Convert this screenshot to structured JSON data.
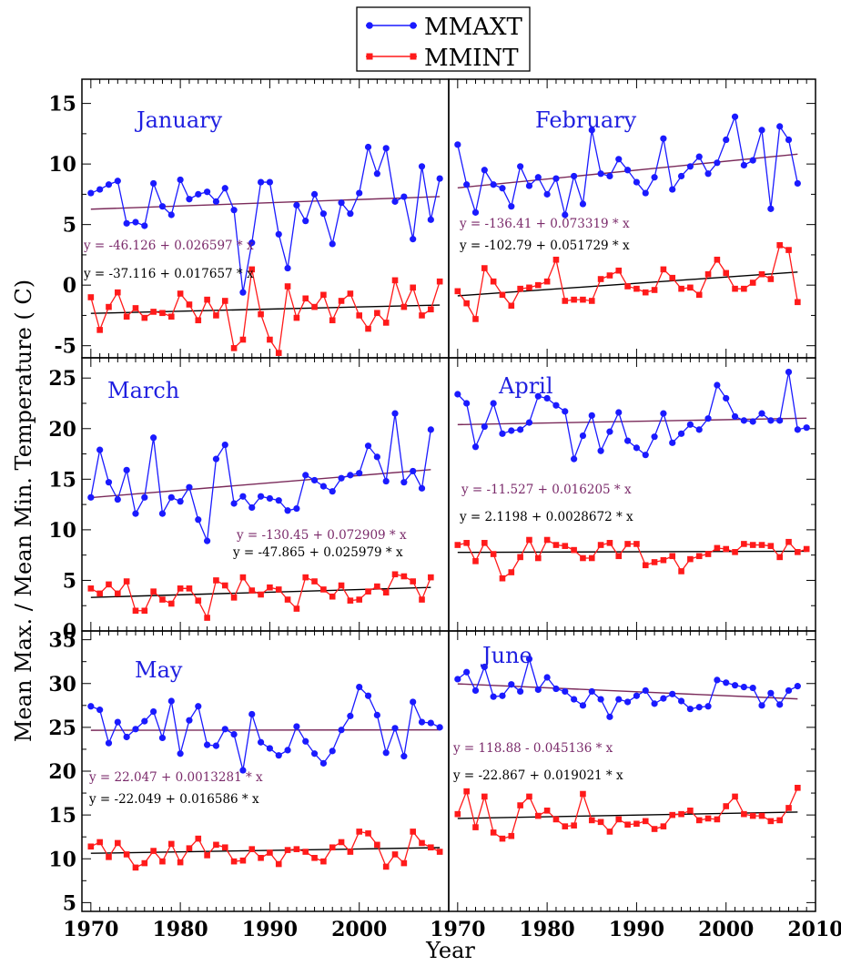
{
  "chart_data": {
    "type": "line",
    "xlabel": "Year",
    "ylabel": "Mean Max. / Mean Min. Temperature ( C)",
    "x_ticks": [
      "1970",
      "1980",
      "1990",
      "2000",
      "2010"
    ],
    "xlim": [
      1969,
      2010
    ],
    "legend": [
      {
        "name": "MMAXT",
        "color": "#1a1aff",
        "marker": "circle"
      },
      {
        "name": "MMINT",
        "color": "#ff1a1a",
        "marker": "square"
      }
    ],
    "colors": {
      "max": "#1a1aff",
      "min": "#ff1a1a",
      "trend_max": "#7a2a5a",
      "trend_min": "#000000",
      "eq_max": "#7a2a6a",
      "eq_min": "#000000"
    },
    "rows": [
      {
        "ylim": [
          -6,
          17
        ],
        "yticks": [
          "-5",
          "0",
          "5",
          "10",
          "15"
        ]
      },
      {
        "ylim": [
          0,
          27
        ],
        "yticks": [
          "0",
          "5",
          "10",
          "15",
          "20",
          "25"
        ]
      },
      {
        "ylim": [
          4,
          36
        ],
        "yticks": [
          "5",
          "10",
          "15",
          "20",
          "25",
          "30",
          "35"
        ]
      }
    ],
    "panels": [
      {
        "title": "January",
        "row": 0,
        "col": 0,
        "years": [
          1970,
          1971,
          1972,
          1973,
          1974,
          1975,
          1976,
          1977,
          1978,
          1979,
          1980,
          1981,
          1982,
          1983,
          1984,
          1985,
          1986,
          1987,
          1988,
          1989,
          1990,
          1991,
          1992,
          1993,
          1994,
          1995,
          1996,
          1997,
          1998,
          1999,
          2000,
          2001,
          2002,
          2003,
          2004,
          2005,
          2006,
          2007,
          2008,
          2009
        ],
        "mmaxt": [
          7.6,
          7.9,
          8.3,
          8.6,
          5.1,
          5.2,
          4.9,
          8.4,
          6.5,
          5.8,
          8.7,
          7.1,
          7.5,
          7.7,
          6.9,
          8.0,
          6.2,
          -0.6,
          3.5,
          8.5,
          8.5,
          4.2,
          1.4,
          6.6,
          5.3,
          7.5,
          5.9,
          3.4,
          6.8,
          5.9,
          7.6,
          11.4,
          9.2,
          11.3,
          6.9,
          7.3,
          3.8,
          9.8,
          5.4,
          8.8
        ],
        "mmint": [
          -1.0,
          -3.7,
          -1.8,
          -0.6,
          -2.6,
          -1.9,
          -2.7,
          -2.2,
          -2.3,
          -2.6,
          -0.7,
          -1.6,
          -2.9,
          -1.2,
          -2.5,
          -1.3,
          -5.2,
          -4.5,
          1.3,
          -2.4,
          -4.5,
          -5.6,
          -0.1,
          -2.7,
          -1.1,
          -1.8,
          -0.8,
          -2.9,
          -1.3,
          -0.7,
          -2.5,
          -3.6,
          -2.3,
          -3.1,
          0.4,
          -1.8,
          -0.2,
          -2.5,
          -2.0,
          0.3
        ],
        "trend_max": {
          "intercept": -46.126,
          "slope": 0.026597
        },
        "trend_min": {
          "intercept": -37.116,
          "slope": 0.017657
        },
        "eq_max": "y = -46.126 + 0.026597 * x",
        "eq_min": "y = -37.116 + 0.017657 * x"
      },
      {
        "title": "February",
        "row": 0,
        "col": 1,
        "years": [
          1970,
          1971,
          1972,
          1973,
          1974,
          1975,
          1976,
          1977,
          1978,
          1979,
          1980,
          1981,
          1982,
          1983,
          1984,
          1985,
          1986,
          1987,
          1988,
          1989,
          1990,
          1991,
          1992,
          1993,
          1994,
          1995,
          1996,
          1997,
          1998,
          1999,
          2000,
          2001,
          2002,
          2003,
          2004,
          2005,
          2006,
          2007,
          2008
        ],
        "mmaxt": [
          11.6,
          8.3,
          6.0,
          9.5,
          8.3,
          8.0,
          6.5,
          9.8,
          8.2,
          8.9,
          7.5,
          8.8,
          5.8,
          9.0,
          6.7,
          12.8,
          9.2,
          9.0,
          10.4,
          9.5,
          8.5,
          7.6,
          8.9,
          12.1,
          7.9,
          9.0,
          9.8,
          10.6,
          9.2,
          10.1,
          12.0,
          13.9,
          9.9,
          10.3,
          12.8,
          6.3,
          13.1,
          12.0,
          8.4
        ],
        "mmint": [
          -0.5,
          -1.5,
          -2.8,
          1.4,
          0.3,
          -0.8,
          -1.7,
          -0.3,
          -0.2,
          0.0,
          0.3,
          2.1,
          -1.3,
          -1.2,
          -1.2,
          -1.3,
          0.5,
          0.8,
          1.2,
          -0.1,
          -0.3,
          -0.6,
          -0.4,
          1.3,
          0.6,
          -0.3,
          -0.2,
          -0.8,
          0.9,
          2.1,
          1.0,
          -0.3,
          -0.3,
          0.2,
          0.9,
          0.5,
          3.3,
          2.9,
          -1.4
        ],
        "trend_max": {
          "intercept": -136.41,
          "slope": 0.073319
        },
        "trend_min": {
          "intercept": -102.79,
          "slope": 0.051729
        },
        "eq_max": "y = -136.41 + 0.073319 * x",
        "eq_min": "y = -102.79 + 0.051729 * x"
      },
      {
        "title": "March",
        "row": 1,
        "col": 0,
        "years": [
          1970,
          1971,
          1972,
          1973,
          1974,
          1975,
          1976,
          1977,
          1978,
          1979,
          1980,
          1981,
          1982,
          1983,
          1984,
          1985,
          1986,
          1987,
          1988,
          1989,
          1990,
          1991,
          1992,
          1993,
          1994,
          1995,
          1996,
          1997,
          1998,
          1999,
          2000,
          2001,
          2002,
          2003,
          2004,
          2005,
          2006,
          2007,
          2008
        ],
        "mmaxt": [
          13.2,
          17.9,
          14.7,
          13.0,
          15.9,
          11.6,
          13.2,
          19.1,
          11.6,
          13.2,
          12.8,
          14.2,
          11.0,
          8.9,
          17.0,
          18.4,
          12.6,
          13.3,
          12.2,
          13.3,
          13.1,
          12.9,
          11.9,
          12.1,
          15.4,
          14.9,
          14.3,
          13.8,
          15.1,
          15.4,
          15.6,
          18.3,
          17.2,
          14.8,
          21.5,
          14.7,
          15.8,
          14.1,
          19.9
        ],
        "mmint": [
          4.2,
          3.7,
          4.6,
          3.7,
          4.9,
          2.0,
          2.0,
          3.9,
          3.1,
          2.7,
          4.2,
          4.2,
          3.0,
          1.3,
          5.0,
          4.5,
          3.3,
          5.3,
          4.0,
          3.6,
          4.3,
          4.1,
          3.1,
          2.2,
          5.3,
          4.9,
          4.1,
          3.4,
          4.5,
          3.0,
          3.1,
          3.9,
          4.4,
          3.8,
          5.6,
          5.4,
          4.9,
          3.1,
          5.3
        ],
        "trend_max": {
          "intercept": -130.45,
          "slope": 0.072909
        },
        "trend_min": {
          "intercept": -47.865,
          "slope": 0.025979
        },
        "eq_max": "y = -130.45 + 0.072909 * x",
        "eq_min": "y = -47.865 + 0.025979 * x"
      },
      {
        "title": "April",
        "row": 1,
        "col": 1,
        "years": [
          1970,
          1971,
          1972,
          1973,
          1974,
          1975,
          1976,
          1977,
          1978,
          1979,
          1980,
          1981,
          1982,
          1983,
          1984,
          1985,
          1986,
          1987,
          1988,
          1989,
          1990,
          1991,
          1992,
          1993,
          1994,
          1995,
          1996,
          1997,
          1998,
          1999,
          2000,
          2001,
          2002,
          2003,
          2004,
          2005,
          2006,
          2007,
          2008,
          2009
        ],
        "mmaxt": [
          23.4,
          22.5,
          18.2,
          20.2,
          22.5,
          19.5,
          19.8,
          19.9,
          20.6,
          23.2,
          23.0,
          22.3,
          21.7,
          17.0,
          19.3,
          21.3,
          17.8,
          19.7,
          21.6,
          18.8,
          18.1,
          17.4,
          19.2,
          21.5,
          18.6,
          19.5,
          20.4,
          19.9,
          21.0,
          24.3,
          23.0,
          21.2,
          20.8,
          20.7,
          21.5,
          20.8,
          20.8,
          25.6,
          19.9,
          20.1
        ],
        "mmint": [
          8.5,
          8.7,
          6.9,
          8.7,
          7.6,
          5.2,
          5.8,
          7.3,
          9.0,
          7.2,
          9.0,
          8.5,
          8.4,
          8.0,
          7.2,
          7.2,
          8.5,
          8.7,
          7.4,
          8.6,
          8.6,
          6.5,
          6.8,
          7.0,
          7.4,
          5.9,
          7.1,
          7.4,
          7.6,
          8.2,
          8.1,
          7.8,
          8.6,
          8.5,
          8.5,
          8.4,
          7.3,
          8.8,
          7.8,
          8.1
        ],
        "trend_max": {
          "intercept": -11.527,
          "slope": 0.016205
        },
        "trend_min": {
          "intercept": 2.1198,
          "slope": 0.0028672
        },
        "eq_max": "y = -11.527 + 0.016205 * x",
        "eq_min": "y = 2.1198 + 0.0028672 * x"
      },
      {
        "title": "May",
        "row": 2,
        "col": 0,
        "years": [
          1970,
          1971,
          1972,
          1973,
          1974,
          1975,
          1976,
          1977,
          1978,
          1979,
          1980,
          1981,
          1982,
          1983,
          1984,
          1985,
          1986,
          1987,
          1988,
          1989,
          1990,
          1991,
          1992,
          1993,
          1994,
          1995,
          1996,
          1997,
          1998,
          1999,
          2000,
          2001,
          2002,
          2003,
          2004,
          2005,
          2006,
          2007,
          2008,
          2009
        ],
        "mmaxt": [
          27.4,
          27.0,
          23.2,
          25.6,
          23.9,
          24.8,
          25.7,
          26.8,
          23.8,
          28.0,
          22.0,
          25.8,
          27.4,
          23.0,
          22.9,
          24.8,
          24.2,
          20.1,
          26.5,
          23.3,
          22.6,
          21.8,
          22.4,
          25.1,
          23.4,
          22.0,
          20.9,
          22.3,
          24.7,
          26.3,
          29.6,
          28.6,
          26.4,
          22.1,
          24.9,
          21.7,
          27.9,
          25.6,
          25.5,
          25.0
        ],
        "mmint": [
          11.4,
          11.9,
          10.2,
          11.8,
          10.5,
          9.0,
          9.5,
          10.9,
          9.7,
          11.7,
          9.6,
          11.2,
          12.3,
          10.4,
          11.6,
          11.3,
          9.7,
          9.8,
          11.1,
          10.1,
          10.7,
          9.4,
          11.0,
          11.1,
          10.8,
          10.1,
          9.7,
          11.3,
          11.9,
          10.8,
          13.1,
          12.9,
          11.6,
          9.1,
          10.5,
          9.5,
          13.1,
          11.8,
          11.3,
          10.8
        ],
        "trend_max": {
          "intercept": 22.047,
          "slope": 0.0013281
        },
        "trend_min": {
          "intercept": -22.049,
          "slope": 0.016586
        },
        "eq_max": "y = 22.047 + 0.0013281 * x",
        "eq_min": "y = -22.049 + 0.016586 * x"
      },
      {
        "title": "June",
        "row": 2,
        "col": 1,
        "years": [
          1970,
          1971,
          1972,
          1973,
          1974,
          1975,
          1976,
          1977,
          1978,
          1979,
          1980,
          1981,
          1982,
          1983,
          1984,
          1985,
          1986,
          1987,
          1988,
          1989,
          1990,
          1991,
          1992,
          1993,
          1994,
          1995,
          1996,
          1997,
          1998,
          1999,
          2000,
          2001,
          2002,
          2003,
          2004,
          2005,
          2006,
          2007,
          2008
        ],
        "mmaxt": [
          30.5,
          31.3,
          29.2,
          31.9,
          28.5,
          28.6,
          29.9,
          29.1,
          32.8,
          29.3,
          30.7,
          29.4,
          29.1,
          28.2,
          27.5,
          29.1,
          28.2,
          26.2,
          28.2,
          27.9,
          28.6,
          29.2,
          27.7,
          28.3,
          28.8,
          28.0,
          27.1,
          27.3,
          27.4,
          30.4,
          30.1,
          29.8,
          29.6,
          29.5,
          27.5,
          28.9,
          27.6,
          29.2,
          29.7
        ],
        "mmint": [
          15.1,
          17.7,
          13.6,
          17.1,
          13.0,
          12.3,
          12.6,
          16.1,
          17.1,
          14.9,
          15.5,
          14.5,
          13.7,
          13.8,
          17.4,
          14.4,
          14.2,
          13.1,
          14.5,
          13.9,
          14.0,
          14.3,
          13.4,
          13.7,
          15.0,
          15.1,
          15.5,
          14.4,
          14.6,
          14.5,
          16.0,
          17.1,
          15.1,
          14.9,
          14.9,
          14.3,
          14.4,
          15.8,
          18.1
        ],
        "trend_max": {
          "intercept": 118.88,
          "slope": -0.045136
        },
        "trend_min": {
          "intercept": -22.867,
          "slope": 0.019021
        },
        "eq_max": "y = 118.88 - 0.045136 * x",
        "eq_min": "y = -22.867 + 0.019021 * x"
      }
    ]
  }
}
